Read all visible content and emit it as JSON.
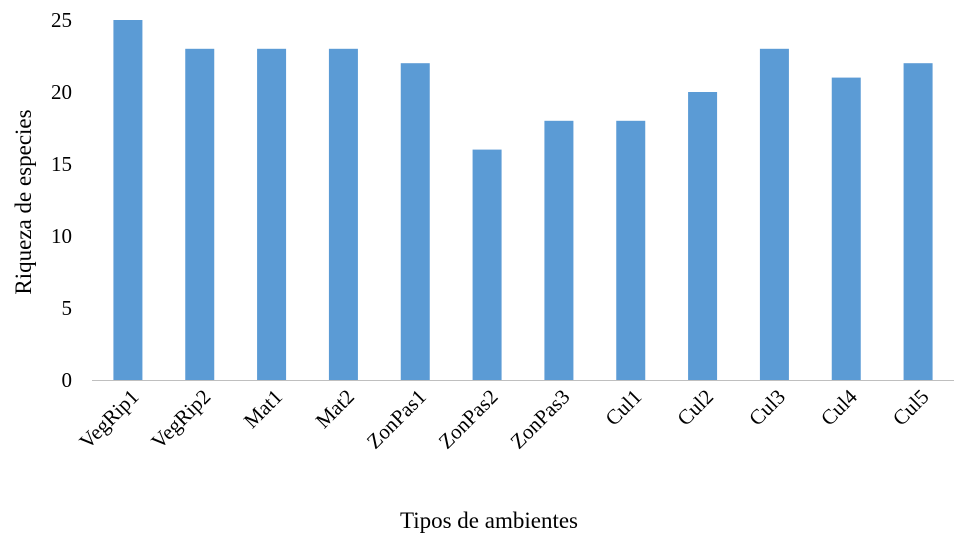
{
  "chart_data": {
    "type": "bar",
    "categories": [
      "VegRip1",
      "VegRip2",
      "Mat1",
      "Mat2",
      "ZonPas1",
      "ZonPas2",
      "ZonPas3",
      "Cul1",
      "Cul2",
      "Cul3",
      "Cul4",
      "Cul5"
    ],
    "values": [
      25,
      23,
      23,
      23,
      22,
      16,
      18,
      18,
      20,
      23,
      21,
      22
    ],
    "title": "",
    "xlabel": "Tipos de ambientes",
    "ylabel": "Riqueza de especies",
    "ylim": [
      0,
      25
    ],
    "yticks": [
      "0",
      "5",
      "10",
      "15",
      "20",
      "25"
    ],
    "grid": false,
    "legend": "none",
    "bar_color": "#5B9BD5",
    "axis_color": "#BFBFBF"
  }
}
